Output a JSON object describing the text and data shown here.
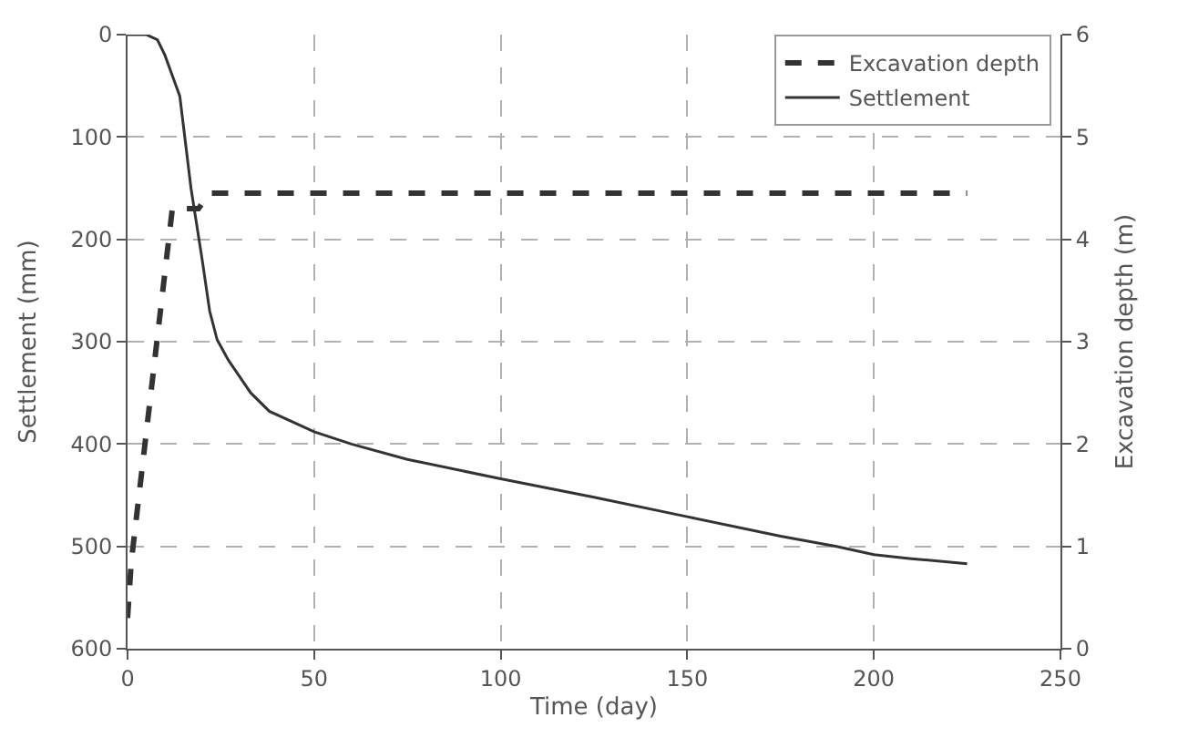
{
  "chart_data": {
    "type": "line",
    "xlabel": "Time (day)",
    "ylabel": "Settlement (mm)",
    "y2label": "Excavation depth (m)",
    "xlim": [
      0,
      250
    ],
    "xticks": [
      0,
      50,
      100,
      150,
      200,
      250
    ],
    "ylim": [
      600,
      0
    ],
    "yticks": [
      0,
      100,
      200,
      300,
      400,
      500,
      600
    ],
    "y2lim": [
      0,
      6
    ],
    "y2ticks": [
      0,
      1,
      2,
      3,
      4,
      5,
      6
    ],
    "grid": true,
    "legend": "top right",
    "marker": "none",
    "series": [
      {
        "name": "Excavation depth",
        "color": "#333333",
        "axis": "y2",
        "line_style": "dashed",
        "x": [
          0,
          1,
          12,
          19,
          22,
          225
        ],
        "values": [
          0.3,
          0.85,
          4.3,
          4.3,
          4.45,
          4.45
        ]
      },
      {
        "name": "Settlement",
        "color": "#333333",
        "axis": "y",
        "line_style": "solid",
        "x": [
          0,
          5,
          8,
          10,
          12,
          14,
          17,
          20,
          22,
          24,
          27,
          33,
          38,
          50,
          60,
          75,
          100,
          125,
          150,
          175,
          190,
          200,
          210,
          225
        ],
        "values": [
          0,
          0,
          5,
          20,
          40,
          60,
          150,
          220,
          270,
          298,
          318,
          350,
          368,
          388,
          400,
          415,
          434,
          452,
          471,
          490,
          500,
          508,
          512,
          517
        ]
      }
    ]
  }
}
